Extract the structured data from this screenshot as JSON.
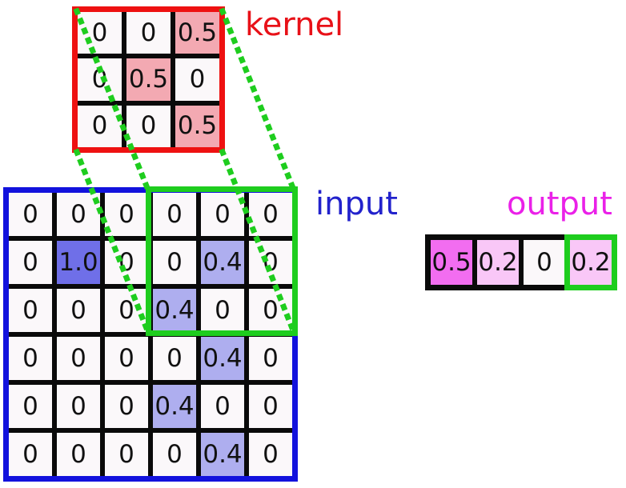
{
  "labels": {
    "kernel": "kernel",
    "input": "input",
    "output": "output"
  },
  "kernel": {
    "rows": [
      [
        "0",
        "0",
        "0.5"
      ],
      [
        "0",
        "0.5",
        "0"
      ],
      [
        "0",
        "0",
        "0.5"
      ]
    ],
    "cell_colors": {
      "0.5": "#f3a9b2"
    },
    "default_cell_color": "#fbf8fa",
    "border_color": "#ee1111",
    "cell_name": "kernel-cell"
  },
  "input": {
    "rows": [
      [
        "0",
        "0",
        "0",
        "0",
        "0",
        "0"
      ],
      [
        "0",
        "1.0",
        "0",
        "0",
        "0.4",
        "0"
      ],
      [
        "0",
        "0",
        "0",
        "0.4",
        "0",
        "0"
      ],
      [
        "0",
        "0",
        "0",
        "0",
        "0.4",
        "0"
      ],
      [
        "0",
        "0",
        "0",
        "0.4",
        "0",
        "0"
      ],
      [
        "0",
        "0",
        "0",
        "0",
        "0.4",
        "0"
      ]
    ],
    "cell_colors": {
      "1.0": "#6f6fe8",
      "0.4": "#aeaeef"
    },
    "default_cell_color": "#fbf8fa",
    "border_color": "#1212dd",
    "cell_name": "input-cell"
  },
  "output": {
    "rows": [
      [
        "0.5",
        "0.2",
        "0",
        "0.2"
      ]
    ],
    "cell_colors": {
      "0.5": "#f26df0",
      "0.2": "#f9c7f7"
    },
    "default_cell_color": "#fbf8fa",
    "border_color": "#0a0a0a",
    "highlighted_cell_index": 3,
    "cell_name": "output-cell"
  },
  "colors": {
    "kernel_accent": "#ee1111",
    "input_accent": "#1212dd",
    "output_accent": "#ea21e8",
    "highlight_green": "#1ecd1e",
    "grid_line_black": "#0a0a0a",
    "kernel_label_text": "#e81118",
    "input_label_text": "#2222cc",
    "output_label_text": "#ea21e8"
  }
}
